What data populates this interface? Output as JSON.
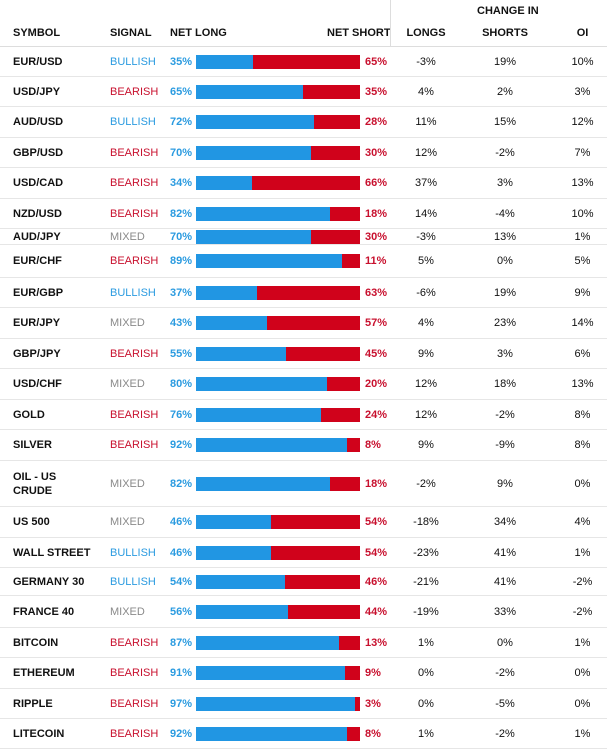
{
  "header": {
    "change_in": "CHANGE IN",
    "symbol": "SYMBOL",
    "signal": "SIGNAL",
    "net_long": "NET LONG",
    "net_short": "NET SHORT",
    "longs": "LONGS",
    "shorts": "SHORTS",
    "oi": "OI"
  },
  "colors": {
    "long": "#2196e3",
    "short": "#d0021b",
    "bullish": "#2b9be0",
    "bearish": "#c8102e",
    "mixed": "#8a8a8a"
  },
  "rows": [
    {
      "symbol": [
        "EUR/USD"
      ],
      "signal": "BULLISH",
      "net_long": "35%",
      "long_pct": 35,
      "net_short": "65%",
      "longs": "-3%",
      "shorts": "19%",
      "oi": "10%"
    },
    {
      "symbol": [
        "USD/JPY"
      ],
      "signal": "BEARISH",
      "net_long": "65%",
      "long_pct": 65,
      "net_short": "35%",
      "longs": "4%",
      "shorts": "2%",
      "oi": "3%"
    },
    {
      "symbol": [
        "AUD/USD"
      ],
      "signal": "BULLISH",
      "net_long": "72%",
      "long_pct": 72,
      "net_short": "28%",
      "longs": "11%",
      "shorts": "15%",
      "oi": "12%"
    },
    {
      "symbol": [
        "GBP/USD"
      ],
      "signal": "BEARISH",
      "net_long": "70%",
      "long_pct": 70,
      "net_short": "30%",
      "longs": "12%",
      "shorts": "-2%",
      "oi": "7%"
    },
    {
      "symbol": [
        "USD/CAD"
      ],
      "signal": "BEARISH",
      "net_long": "34%",
      "long_pct": 34,
      "net_short": "66%",
      "longs": "37%",
      "shorts": "3%",
      "oi": "13%"
    },
    {
      "symbol": [
        "NZD/USD"
      ],
      "signal": "BEARISH",
      "net_long": "82%",
      "long_pct": 82,
      "net_short": "18%",
      "longs": "14%",
      "shorts": "-4%",
      "oi": "10%"
    },
    {
      "symbol": [
        "AUD/JPY"
      ],
      "signal": "MIXED",
      "net_long": "70%",
      "long_pct": 70,
      "net_short": "30%",
      "longs": "-3%",
      "shorts": "13%",
      "oi": "1%"
    },
    {
      "symbol": [
        "EUR/CHF"
      ],
      "signal": "BEARISH",
      "net_long": "89%",
      "long_pct": 89,
      "net_short": "11%",
      "longs": "5%",
      "shorts": "0%",
      "oi": "5%"
    },
    {
      "symbol": [
        "EUR/GBP"
      ],
      "signal": "BULLISH",
      "net_long": "37%",
      "long_pct": 37,
      "net_short": "63%",
      "longs": "-6%",
      "shorts": "19%",
      "oi": "9%"
    },
    {
      "symbol": [
        "EUR/JPY"
      ],
      "signal": "MIXED",
      "net_long": "43%",
      "long_pct": 43,
      "net_short": "57%",
      "longs": "4%",
      "shorts": "23%",
      "oi": "14%"
    },
    {
      "symbol": [
        "GBP/JPY"
      ],
      "signal": "BEARISH",
      "net_long": "55%",
      "long_pct": 55,
      "net_short": "45%",
      "longs": "9%",
      "shorts": "3%",
      "oi": "6%"
    },
    {
      "symbol": [
        "USD/CHF"
      ],
      "signal": "MIXED",
      "net_long": "80%",
      "long_pct": 80,
      "net_short": "20%",
      "longs": "12%",
      "shorts": "18%",
      "oi": "13%"
    },
    {
      "symbol": [
        "GOLD"
      ],
      "signal": "BEARISH",
      "net_long": "76%",
      "long_pct": 76,
      "net_short": "24%",
      "longs": "12%",
      "shorts": "-2%",
      "oi": "8%"
    },
    {
      "symbol": [
        "SILVER"
      ],
      "signal": "BEARISH",
      "net_long": "92%",
      "long_pct": 92,
      "net_short": "8%",
      "longs": "9%",
      "shorts": "-9%",
      "oi": "8%"
    },
    {
      "symbol": [
        "OIL - US",
        "CRUDE"
      ],
      "signal": "MIXED",
      "net_long": "82%",
      "long_pct": 82,
      "net_short": "18%",
      "longs": "-2%",
      "shorts": "9%",
      "oi": "0%"
    },
    {
      "symbol": [
        "US 500"
      ],
      "signal": "MIXED",
      "net_long": "46%",
      "long_pct": 46,
      "net_short": "54%",
      "longs": "-18%",
      "shorts": "34%",
      "oi": "4%"
    },
    {
      "symbol": [
        "WALL STREET"
      ],
      "signal": "BULLISH",
      "net_long": "46%",
      "long_pct": 46,
      "net_short": "54%",
      "longs": "-23%",
      "shorts": "41%",
      "oi": "1%"
    },
    {
      "symbol": [
        "GERMANY 30"
      ],
      "signal": "BULLISH",
      "net_long": "54%",
      "long_pct": 54,
      "net_short": "46%",
      "longs": "-21%",
      "shorts": "41%",
      "oi": "-2%"
    },
    {
      "symbol": [
        "FRANCE 40"
      ],
      "signal": "MIXED",
      "net_long": "56%",
      "long_pct": 56,
      "net_short": "44%",
      "longs": "-19%",
      "shorts": "33%",
      "oi": "-2%"
    },
    {
      "symbol": [
        "BITCOIN"
      ],
      "signal": "BEARISH",
      "net_long": "87%",
      "long_pct": 87,
      "net_short": "13%",
      "longs": "1%",
      "shorts": "0%",
      "oi": "1%"
    },
    {
      "symbol": [
        "ETHEREUM"
      ],
      "signal": "BEARISH",
      "net_long": "91%",
      "long_pct": 91,
      "net_short": "9%",
      "longs": "0%",
      "shorts": "-2%",
      "oi": "0%"
    },
    {
      "symbol": [
        "RIPPLE"
      ],
      "signal": "BEARISH",
      "net_long": "97%",
      "long_pct": 97,
      "net_short": "3%",
      "longs": "0%",
      "shorts": "-5%",
      "oi": "0%"
    },
    {
      "symbol": [
        "LITECOIN"
      ],
      "signal": "BEARISH",
      "net_long": "92%",
      "long_pct": 92,
      "net_short": "8%",
      "longs": "1%",
      "shorts": "-2%",
      "oi": "1%"
    }
  ]
}
